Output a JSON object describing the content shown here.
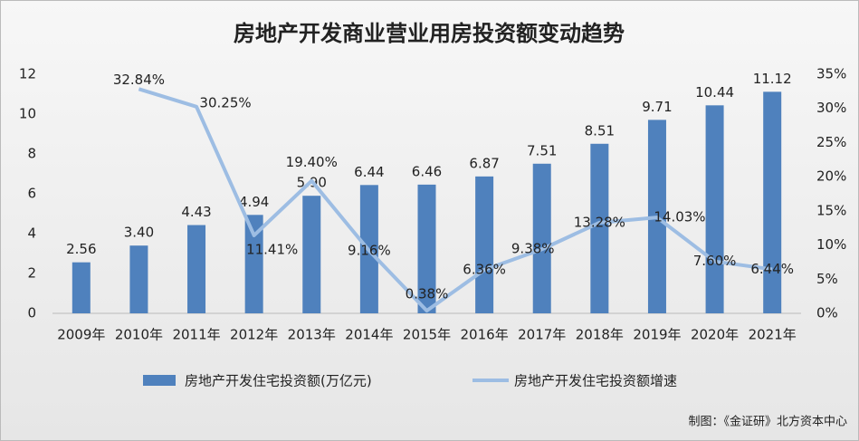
{
  "chart_data": {
    "type": "bar_line",
    "title": "房地产开发商业营业用房投资额变动趋势",
    "categories": [
      "2009年",
      "2010年",
      "2011年",
      "2012年",
      "2013年",
      "2014年",
      "2015年",
      "2016年",
      "2017年",
      "2018年",
      "2019年",
      "2020年",
      "2021年"
    ],
    "series": [
      {
        "name": "房地产开发住宅投资额(万亿元)",
        "type": "bar",
        "color": "#4f81bd",
        "values": [
          2.56,
          3.4,
          4.43,
          4.94,
          5.9,
          6.44,
          6.46,
          6.87,
          7.51,
          8.51,
          9.71,
          10.44,
          11.12
        ],
        "value_labels": [
          "2.56",
          "3.40",
          "4.43",
          "4.94",
          "5.90",
          "6.44",
          "6.46",
          "6.87",
          "7.51",
          "8.51",
          "9.71",
          "10.44",
          "11.12"
        ]
      },
      {
        "name": "房地产开发住宅投资额增速",
        "type": "line",
        "axis": "y2",
        "color": "#9dbde3",
        "values": [
          null,
          32.84,
          30.25,
          11.41,
          19.4,
          9.16,
          0.38,
          6.36,
          9.38,
          13.28,
          14.03,
          7.6,
          6.44
        ],
        "value_labels": [
          null,
          "32.84%",
          "30.25%",
          "11.41%",
          "19.40%",
          "9.16%",
          "0.38%",
          "6.36%",
          "9.38%",
          "13.28%",
          "14.03%",
          "7.60%",
          "6.44%"
        ]
      }
    ],
    "ylim": [
      0,
      12
    ],
    "yticks": [
      0,
      2,
      4,
      6,
      8,
      10,
      12
    ],
    "y2lim": [
      0,
      35
    ],
    "y2ticks": [
      {
        "value": 0,
        "label": "0%"
      },
      {
        "value": 5,
        "label": "5%"
      },
      {
        "value": 10,
        "label": "10%"
      },
      {
        "value": 15,
        "label": "15%"
      },
      {
        "value": 20,
        "label": "20%"
      },
      {
        "value": 25,
        "label": "25%"
      },
      {
        "value": 30,
        "label": "30%"
      },
      {
        "value": 35,
        "label": "35%"
      }
    ],
    "legend": "bottom",
    "source": "制图：《金证研》北方资本中心"
  }
}
